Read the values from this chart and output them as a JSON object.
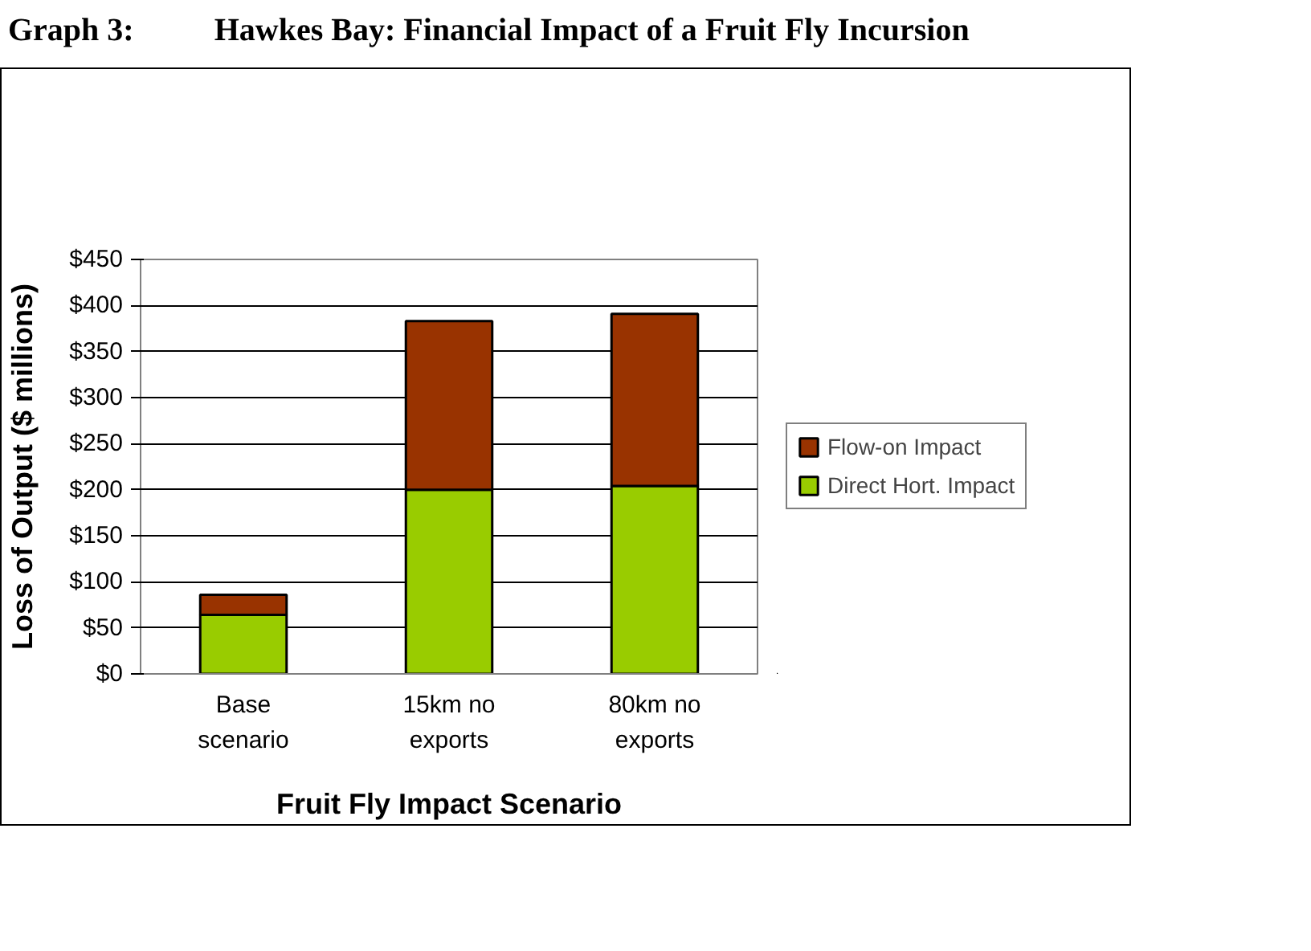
{
  "chart_data": {
    "type": "bar",
    "title": "Hawkes Bay: Financial Impact of a Fruit Fly Incursion",
    "annotations": [
      "Graph 3:"
    ],
    "xlabel": "Fruit Fly Impact Scenario",
    "ylabel": "Loss of Output ($ millions)",
    "categories": [
      "Base\nscenario",
      "15km no\nexports",
      "80km no\nexports"
    ],
    "stacked": true,
    "series": [
      {
        "name": "Direct Hort. Impact",
        "color": "#99cc00",
        "values": [
          64,
          200,
          204
        ]
      },
      {
        "name": "Flow-on Impact",
        "color": "#993300",
        "values": [
          22,
          183,
          187
        ]
      }
    ],
    "ylim": [
      0,
      450
    ],
    "yticks": [
      {
        "value": 0,
        "label": "$0"
      },
      {
        "value": 50,
        "label": "$50"
      },
      {
        "value": 100,
        "label": "$100"
      },
      {
        "value": 150,
        "label": "$150"
      },
      {
        "value": 200,
        "label": "$200"
      },
      {
        "value": 250,
        "label": "$250"
      },
      {
        "value": 300,
        "label": "$300"
      },
      {
        "value": 350,
        "label": "$350"
      },
      {
        "value": 400,
        "label": "$400"
      },
      {
        "value": 450,
        "label": "$450"
      }
    ],
    "grid": "y",
    "legend": "right"
  }
}
